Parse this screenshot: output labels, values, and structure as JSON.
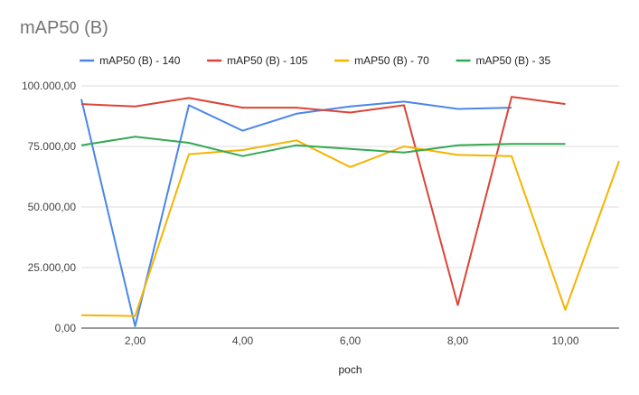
{
  "chart_data": {
    "type": "line",
    "title": "mAP50 (B)",
    "xlabel": "poch",
    "ylabel": "",
    "xlim": [
      1,
      11
    ],
    "ylim": [
      0,
      100000
    ],
    "x_ticks": [
      2,
      4,
      6,
      8,
      10
    ],
    "x_tick_labels": [
      "2,00",
      "4,00",
      "6,00",
      "8,00",
      "10,00"
    ],
    "y_ticks": [
      0,
      25000,
      50000,
      75000,
      100000
    ],
    "y_tick_labels": [
      "0,00",
      "25.000,00",
      "50.000,00",
      "75.000,00",
      "100.000,00"
    ],
    "grid": true,
    "legend_position": "top",
    "series": [
      {
        "name": "mAP50 (B) - 140",
        "color": "#4a86e8",
        "x": [
          1,
          2,
          3,
          4,
          5,
          6,
          7,
          8,
          9
        ],
        "values": [
          94500,
          800,
          92000,
          81500,
          88500,
          91500,
          93500,
          90500,
          91000
        ]
      },
      {
        "name": "mAP50 (B) - 105",
        "color": "#db4437",
        "x": [
          1,
          2,
          3,
          4,
          5,
          6,
          7,
          8,
          9,
          10
        ],
        "values": [
          92500,
          91500,
          95000,
          91000,
          91000,
          89000,
          92000,
          9500,
          95500,
          92500
        ]
      },
      {
        "name": "mAP50 (B) - 70",
        "color": "#f4b400",
        "x": [
          1,
          2,
          3,
          4,
          5,
          6,
          7,
          8,
          9,
          10,
          11
        ],
        "values": [
          5300,
          5000,
          71800,
          73500,
          77500,
          66500,
          75000,
          71500,
          71000,
          7500,
          69000
        ]
      },
      {
        "name": "mAP50 (B) - 35",
        "color": "#34a853",
        "x": [
          1,
          2,
          3,
          4,
          5,
          6,
          7,
          8,
          9,
          10
        ],
        "values": [
          75500,
          79000,
          76500,
          71000,
          75500,
          74000,
          72500,
          75500,
          76000,
          76000
        ]
      }
    ]
  }
}
